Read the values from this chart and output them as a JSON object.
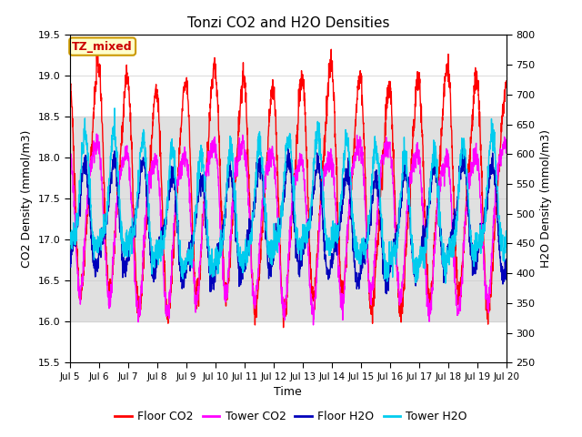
{
  "title": "Tonzi CO2 and H2O Densities",
  "xlabel": "Time",
  "ylabel_left": "CO2 Density (mmol/m3)",
  "ylabel_right": "H2O Density (mmol/m3)",
  "annotation": "TZ_mixed",
  "annotation_color": "#cc0000",
  "annotation_bg": "#ffffcc",
  "annotation_border": "#cc9900",
  "xlim_days": [
    5,
    20
  ],
  "ylim_left": [
    15.5,
    19.5
  ],
  "ylim_right": [
    250,
    800
  ],
  "x_ticks": [
    5,
    6,
    7,
    8,
    9,
    10,
    11,
    12,
    13,
    14,
    15,
    16,
    17,
    18,
    19,
    20
  ],
  "x_tick_labels": [
    "Jul 5",
    "Jul 6",
    "Jul 7",
    "Jul 8",
    "Jul 9",
    "Jul 10",
    "Jul 11",
    "Jul 12",
    "Jul 13",
    "Jul 14",
    "Jul 15",
    "Jul 16",
    "Jul 17",
    "Jul 18",
    "Jul 19",
    "Jul 20"
  ],
  "yticks_left": [
    15.5,
    16.0,
    16.5,
    17.0,
    17.5,
    18.0,
    18.5,
    19.0,
    19.5
  ],
  "yticks_right": [
    250,
    300,
    350,
    400,
    450,
    500,
    550,
    600,
    650,
    700,
    750,
    800
  ],
  "colors": {
    "floor_co2": "#ff0000",
    "tower_co2": "#ff00ff",
    "floor_h2o": "#0000bb",
    "tower_h2o": "#00ccee"
  },
  "line_widths": {
    "floor_co2": 1.0,
    "tower_co2": 1.0,
    "floor_h2o": 1.0,
    "tower_h2o": 1.0
  },
  "legend_labels": [
    "Floor CO2",
    "Tower CO2",
    "Floor H2O",
    "Tower H2O"
  ],
  "bg_band_y1": 16.0,
  "bg_band_y2": 18.5,
  "bg_color_band": "#e0e0e0",
  "bg_color_white": "#ffffff",
  "n_points": 2000
}
